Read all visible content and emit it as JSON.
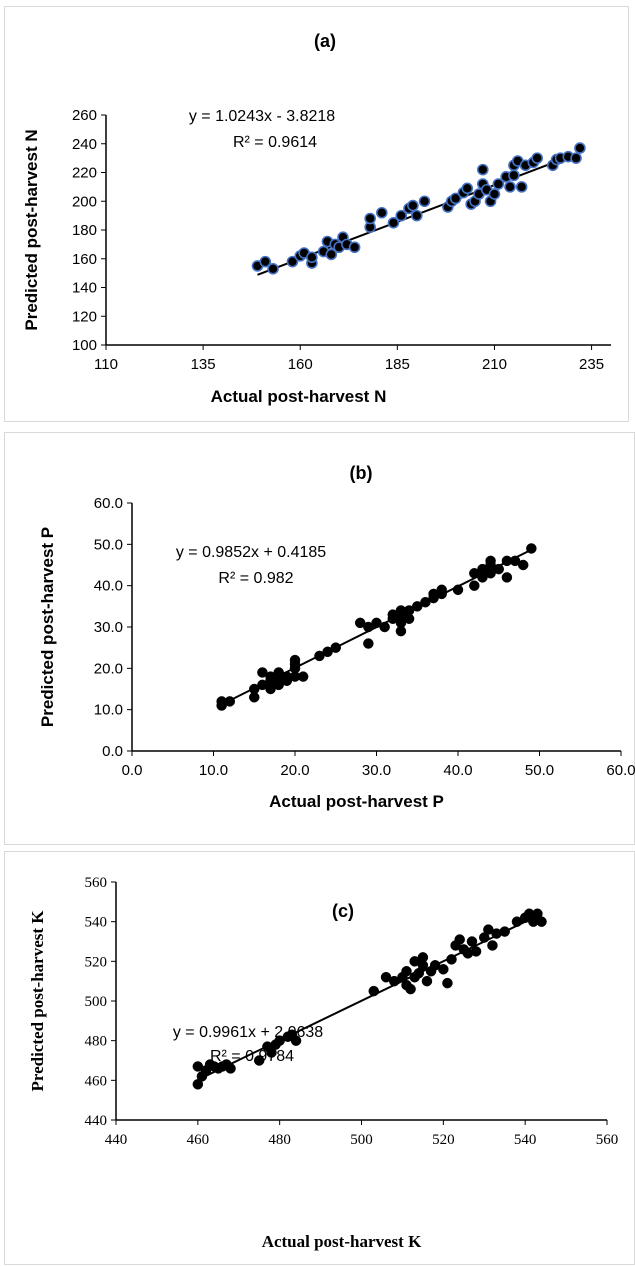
{
  "chart_data": [
    {
      "type": "scatter",
      "title": "(a)",
      "xlabel": "Actual post-harvest N",
      "ylabel": "Predicted post-harvest N",
      "xlim": [
        110,
        240
      ],
      "ylim": [
        100,
        260
      ],
      "xticks": [
        110,
        135,
        160,
        185,
        210,
        235
      ],
      "yticks": [
        100,
        120,
        140,
        160,
        180,
        200,
        220,
        240,
        260
      ],
      "tick_decimals": 0,
      "marker_edge": "#4472c4",
      "trendline": {
        "slope": 1.0243,
        "intercept": -3.8218,
        "x_range": [
          149,
          233
        ]
      },
      "equation": "y = 1.0243x - 3.8218",
      "r2": "R² = 0.9614",
      "points": [
        [
          149,
          155
        ],
        [
          151,
          158
        ],
        [
          153,
          153
        ],
        [
          158,
          158
        ],
        [
          160,
          162
        ],
        [
          161,
          164
        ],
        [
          163,
          157
        ],
        [
          163,
          161
        ],
        [
          166,
          165
        ],
        [
          167,
          172
        ],
        [
          168,
          163
        ],
        [
          169,
          170
        ],
        [
          170,
          168
        ],
        [
          171,
          175
        ],
        [
          172,
          170
        ],
        [
          174,
          168
        ],
        [
          178,
          182
        ],
        [
          178,
          188
        ],
        [
          181,
          192
        ],
        [
          184,
          185
        ],
        [
          186,
          190
        ],
        [
          188,
          195
        ],
        [
          189,
          197
        ],
        [
          190,
          190
        ],
        [
          192,
          200
        ],
        [
          198,
          196
        ],
        [
          199,
          200
        ],
        [
          200,
          202
        ],
        [
          202,
          206
        ],
        [
          203,
          209
        ],
        [
          204,
          198
        ],
        [
          205,
          200
        ],
        [
          206,
          205
        ],
        [
          207,
          212
        ],
        [
          207,
          222
        ],
        [
          208,
          208
        ],
        [
          209,
          200
        ],
        [
          210,
          205
        ],
        [
          211,
          212
        ],
        [
          213,
          217
        ],
        [
          214,
          210
        ],
        [
          215,
          218
        ],
        [
          215,
          225
        ],
        [
          216,
          228
        ],
        [
          217,
          210
        ],
        [
          218,
          225
        ],
        [
          220,
          227
        ],
        [
          221,
          230
        ],
        [
          225,
          225
        ],
        [
          226,
          229
        ],
        [
          227,
          230
        ],
        [
          229,
          231
        ],
        [
          231,
          230
        ],
        [
          232,
          237
        ]
      ]
    },
    {
      "type": "scatter",
      "title": "(b)",
      "xlabel": "Actual post-harvest P",
      "ylabel": "Predicted post-harvest P",
      "xlim": [
        0,
        60
      ],
      "ylim": [
        0,
        60
      ],
      "xticks": [
        0,
        10,
        20,
        30,
        40,
        50,
        60
      ],
      "yticks": [
        0,
        10,
        20,
        30,
        40,
        50,
        60
      ],
      "tick_decimals": 1,
      "marker_edge": "#000000",
      "trendline": {
        "slope": 0.9852,
        "intercept": 0.4185,
        "x_range": [
          11,
          49
        ]
      },
      "equation": "y = 0.9852x + 0.4185",
      "r2": "R² = 0.982",
      "points": [
        [
          11,
          11
        ],
        [
          11,
          12
        ],
        [
          12,
          12
        ],
        [
          15,
          13
        ],
        [
          15,
          15
        ],
        [
          16,
          16
        ],
        [
          16,
          19
        ],
        [
          17,
          17
        ],
        [
          17,
          18
        ],
        [
          17,
          15
        ],
        [
          18,
          16
        ],
        [
          18,
          17
        ],
        [
          18,
          19
        ],
        [
          19,
          17
        ],
        [
          19,
          18
        ],
        [
          20,
          18
        ],
        [
          20,
          20
        ],
        [
          20,
          21
        ],
        [
          20,
          22
        ],
        [
          21,
          18
        ],
        [
          23,
          23
        ],
        [
          24,
          24
        ],
        [
          25,
          25
        ],
        [
          28,
          31
        ],
        [
          29,
          26
        ],
        [
          29,
          30
        ],
        [
          30,
          31
        ],
        [
          31,
          30
        ],
        [
          32,
          32
        ],
        [
          32,
          33
        ],
        [
          33,
          29
        ],
        [
          33,
          31
        ],
        [
          33,
          33
        ],
        [
          33,
          34
        ],
        [
          34,
          32
        ],
        [
          34,
          34
        ],
        [
          35,
          35
        ],
        [
          36,
          36
        ],
        [
          37,
          38
        ],
        [
          37,
          37
        ],
        [
          38,
          38
        ],
        [
          38,
          39
        ],
        [
          40,
          39
        ],
        [
          42,
          40
        ],
        [
          42,
          43
        ],
        [
          43,
          42
        ],
        [
          43,
          44
        ],
        [
          44,
          43
        ],
        [
          44,
          45
        ],
        [
          44,
          46
        ],
        [
          45,
          44
        ],
        [
          46,
          46
        ],
        [
          46,
          42
        ],
        [
          47,
          46
        ],
        [
          48,
          45
        ],
        [
          49,
          49
        ]
      ]
    },
    {
      "type": "scatter",
      "title": "(c)",
      "xlabel": "Actual post-harvest K",
      "ylabel": "Predicted post-harvest K",
      "xlim": [
        440,
        560
      ],
      "ylim": [
        440,
        560
      ],
      "xticks": [
        440,
        460,
        480,
        500,
        520,
        540,
        560
      ],
      "yticks": [
        440,
        460,
        480,
        500,
        520,
        540,
        560
      ],
      "tick_decimals": 0,
      "marker_edge": "#000000",
      "trendline": {
        "slope": 0.9961,
        "intercept": 2.0638,
        "x_range": [
          460,
          544
        ]
      },
      "equation": "y = 0.9961x + 2.0638",
      "r2": "R² = 0.9784",
      "points": [
        [
          460,
          458
        ],
        [
          460,
          467
        ],
        [
          461,
          462
        ],
        [
          462,
          465
        ],
        [
          463,
          468
        ],
        [
          464,
          467
        ],
        [
          465,
          466
        ],
        [
          466,
          467
        ],
        [
          467,
          468
        ],
        [
          468,
          466
        ],
        [
          475,
          470
        ],
        [
          477,
          477
        ],
        [
          478,
          474
        ],
        [
          479,
          478
        ],
        [
          480,
          480
        ],
        [
          482,
          482
        ],
        [
          483,
          483
        ],
        [
          484,
          480
        ],
        [
          503,
          505
        ],
        [
          506,
          512
        ],
        [
          508,
          510
        ],
        [
          510,
          512
        ],
        [
          511,
          515
        ],
        [
          511,
          508
        ],
        [
          512,
          506
        ],
        [
          513,
          512
        ],
        [
          513,
          520
        ],
        [
          514,
          514
        ],
        [
          515,
          518
        ],
        [
          515,
          522
        ],
        [
          516,
          510
        ],
        [
          517,
          515
        ],
        [
          518,
          518
        ],
        [
          520,
          516
        ],
        [
          521,
          509
        ],
        [
          522,
          521
        ],
        [
          523,
          528
        ],
        [
          524,
          531
        ],
        [
          525,
          526
        ],
        [
          526,
          524
        ],
        [
          527,
          530
        ],
        [
          528,
          525
        ],
        [
          530,
          532
        ],
        [
          531,
          536
        ],
        [
          532,
          528
        ],
        [
          533,
          534
        ],
        [
          535,
          535
        ],
        [
          538,
          540
        ],
        [
          540,
          542
        ],
        [
          541,
          544
        ],
        [
          542,
          540
        ],
        [
          543,
          544
        ],
        [
          544,
          540
        ]
      ]
    }
  ]
}
